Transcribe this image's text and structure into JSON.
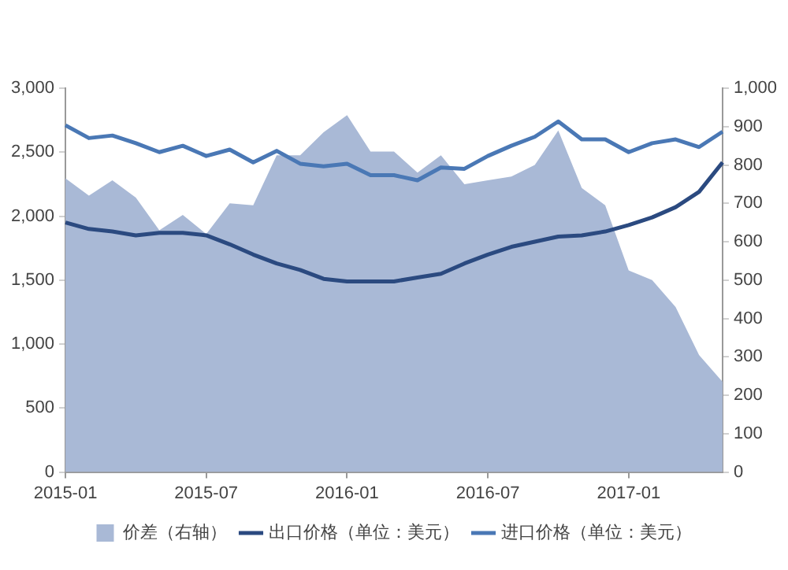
{
  "chart_data": {
    "type": "line",
    "categories": [
      "2015-01",
      null,
      null,
      null,
      null,
      null,
      "2015-07",
      null,
      null,
      null,
      null,
      null,
      "2016-01",
      null,
      null,
      null,
      null,
      null,
      "2016-07",
      null,
      null,
      null,
      null,
      null,
      "2017-01",
      null,
      null,
      null,
      null
    ],
    "series": [
      {
        "name": "价差（右轴）",
        "type": "area",
        "axis": "y2",
        "color": "#a9b9d6",
        "values": [
          765,
          720,
          760,
          715,
          630,
          670,
          620,
          700,
          695,
          825,
          825,
          885,
          930,
          835,
          835,
          780,
          825,
          750,
          760,
          770,
          800,
          890,
          740,
          695,
          525,
          500,
          430,
          305,
          235
        ]
      },
      {
        "name": "出口价格（单位：美元）",
        "type": "line",
        "color": "#2b4a80",
        "values": [
          1950,
          1900,
          1880,
          1850,
          1870,
          1870,
          1850,
          1780,
          1700,
          1630,
          1580,
          1510,
          1490,
          1490,
          1490,
          1520,
          1550,
          1630,
          1700,
          1760,
          1800,
          1840,
          1850,
          1880,
          1930,
          1990,
          2070,
          2190,
          2420
        ]
      },
      {
        "name": "进口价格（单位：美元）",
        "type": "line",
        "color": "#4a78b5",
        "values": [
          2710,
          2610,
          2630,
          2570,
          2500,
          2550,
          2470,
          2520,
          2420,
          2510,
          2410,
          2390,
          2410,
          2320,
          2320,
          2280,
          2380,
          2370,
          2470,
          2550,
          2620,
          2740,
          2600,
          2600,
          2500,
          2570,
          2600,
          2540,
          2660
        ]
      }
    ],
    "ylim": [
      0,
      3000
    ],
    "yticks": [
      0,
      500,
      {
        "value": 1000,
        "label": "1,000"
      },
      {
        "value": 1500,
        "label": "1,500"
      },
      {
        "value": 2000,
        "label": "2,000"
      },
      {
        "value": 2500,
        "label": "2,500"
      },
      {
        "value": 3000,
        "label": "3,000"
      }
    ],
    "y2lim": [
      0,
      1000
    ],
    "y2ticks": [
      0,
      100,
      200,
      300,
      400,
      500,
      600,
      700,
      800,
      900,
      {
        "value": 1000,
        "label": "1,000"
      }
    ],
    "grid": false,
    "legend": "bottom"
  }
}
